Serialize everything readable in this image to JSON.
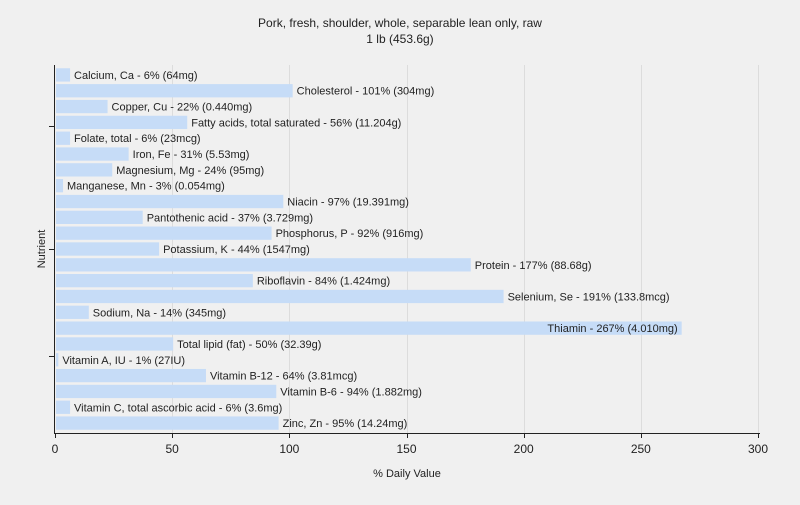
{
  "chart_data": {
    "type": "bar",
    "orientation": "horizontal",
    "title": "Pork, fresh, shoulder, whole, separable lean only, raw",
    "subtitle": "1 lb (453.6g)",
    "xlabel": "% Daily Value",
    "ylabel": "Nutrient",
    "xlim": [
      0,
      300
    ],
    "xticks": [
      0,
      50,
      100,
      150,
      200,
      250,
      300
    ],
    "grid": true,
    "bar_color": "#c6dcf7",
    "grid_color": "#dcdcdc",
    "categories": [
      "Calcium, Ca - 6% (64mg)",
      "Cholesterol - 101% (304mg)",
      "Copper, Cu - 22% (0.440mg)",
      "Fatty acids, total saturated - 56% (11.204g)",
      "Folate, total - 6% (23mcg)",
      "Iron, Fe - 31% (5.53mg)",
      "Magnesium, Mg - 24% (95mg)",
      "Manganese, Mn - 3% (0.054mg)",
      "Niacin - 97% (19.391mg)",
      "Pantothenic acid - 37% (3.729mg)",
      "Phosphorus, P - 92% (916mg)",
      "Potassium, K - 44% (1547mg)",
      "Protein - 177% (88.68g)",
      "Riboflavin - 84% (1.424mg)",
      "Selenium, Se - 191% (133.8mcg)",
      "Sodium, Na - 14% (345mg)",
      "Thiamin - 267% (4.010mg)",
      "Total lipid (fat) - 50% (32.39g)",
      "Vitamin A, IU - 1% (27IU)",
      "Vitamin B-12 - 64% (3.81mcg)",
      "Vitamin B-6 - 94% (1.882mg)",
      "Vitamin C, total ascorbic acid - 6% (3.6mg)",
      "Zinc, Zn - 95% (14.24mg)"
    ],
    "values": [
      6,
      101,
      22,
      56,
      6,
      31,
      24,
      3,
      97,
      37,
      92,
      44,
      177,
      84,
      191,
      14,
      267,
      50,
      1,
      64,
      94,
      6,
      95
    ]
  }
}
